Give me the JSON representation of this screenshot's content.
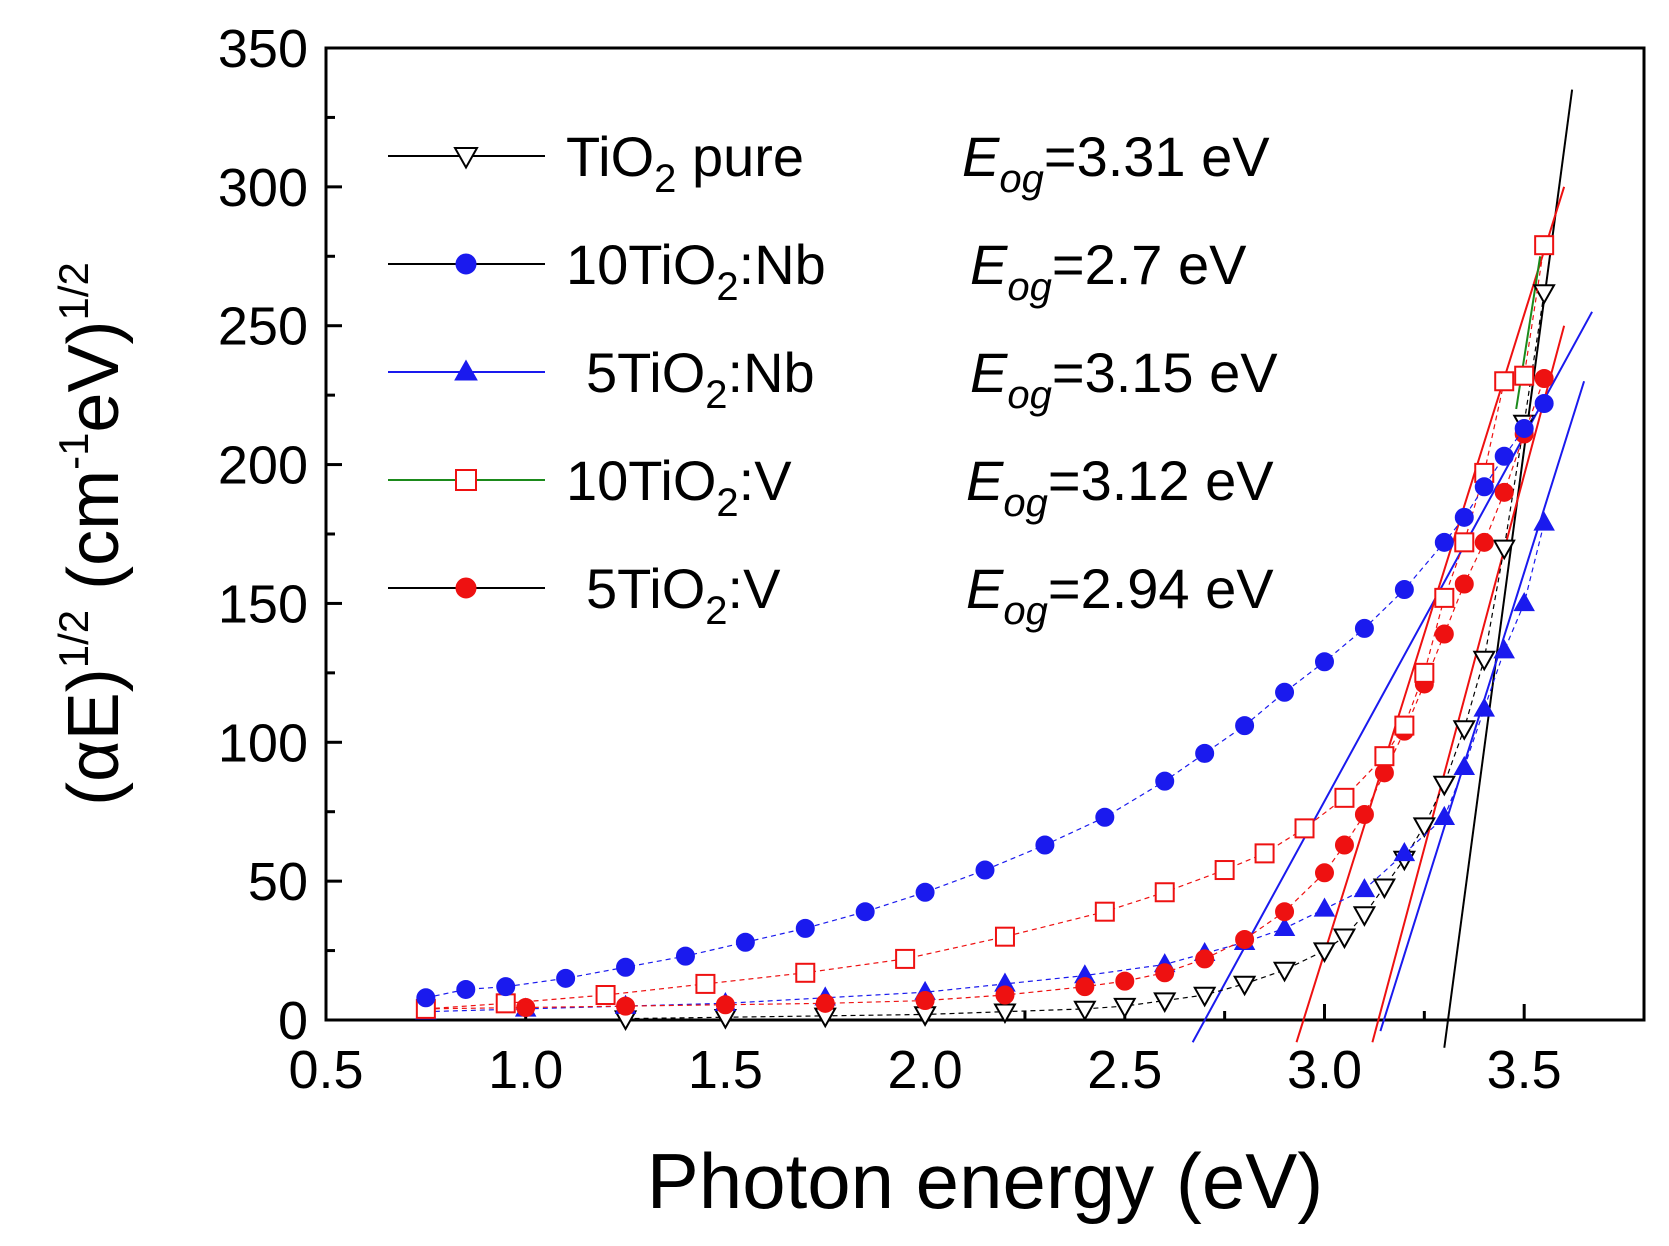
{
  "chart_data": {
    "type": "scatter",
    "xlabel": "Photon energy (eV)",
    "ylabel": {
      "prefix": "(αE)",
      "prefix_sup": "1/2",
      "unit_open": "(cm",
      "unit_sup": "-1",
      "unit_close": "eV)",
      "unit_close_sup": "1/2"
    },
    "xlim": [
      0.5,
      3.8
    ],
    "ylim": [
      0,
      350
    ],
    "xticks": [
      0.5,
      1.0,
      1.5,
      2.0,
      2.5,
      3.0,
      3.5
    ],
    "xtick_labels": [
      "0.5",
      "1.0",
      "1.5",
      "2.0",
      "2.5",
      "3.0",
      "3.5"
    ],
    "yticks": [
      0,
      50,
      100,
      150,
      200,
      250,
      300,
      350
    ],
    "ytick_labels": [
      "0",
      "50",
      "100",
      "150",
      "200",
      "250",
      "300",
      "350"
    ],
    "series": [
      {
        "name": "TiO2 pure",
        "label_main": "TiO",
        "label_sub": "2",
        "label_tail": " pure",
        "eog_value": "=3.31 eV",
        "marker": "triangle-down-open",
        "color": "#000000",
        "x": [
          1.25,
          1.5,
          1.75,
          2.0,
          2.2,
          2.4,
          2.5,
          2.6,
          2.7,
          2.8,
          2.9,
          3.0,
          3.05,
          3.1,
          3.15,
          3.2,
          3.25,
          3.3,
          3.35,
          3.4,
          3.45,
          3.5,
          3.55
        ],
        "y": [
          0.5,
          1,
          1.5,
          2,
          3,
          4,
          5,
          7,
          9,
          13,
          18,
          25,
          30,
          38,
          48,
          58,
          70,
          85,
          105,
          130,
          170,
          215,
          262
        ]
      },
      {
        "name": "10TiO2:Nb",
        "label_main": "10TiO",
        "label_sub": "2",
        "label_tail": ":Nb",
        "eog_value": "=2.7 eV",
        "marker": "circle-filled",
        "color": "#1a1aee",
        "x": [
          0.75,
          0.85,
          0.95,
          1.1,
          1.25,
          1.4,
          1.55,
          1.7,
          1.85,
          2.0,
          2.15,
          2.3,
          2.45,
          2.6,
          2.7,
          2.8,
          2.9,
          3.0,
          3.1,
          3.2,
          3.3,
          3.35,
          3.4,
          3.45,
          3.5,
          3.55
        ],
        "y": [
          8,
          11,
          12,
          15,
          19,
          23,
          28,
          33,
          39,
          46,
          54,
          63,
          73,
          86,
          96,
          106,
          118,
          129,
          141,
          155,
          172,
          181,
          192,
          203,
          213,
          222
        ]
      },
      {
        "name": "5TiO2:Nb",
        "label_main": "5TiO",
        "label_sub": "2",
        "label_tail": ":Nb",
        "eog_value": "=3.15 eV",
        "marker": "triangle-up-filled",
        "color": "#1a1aee",
        "x": [
          0.75,
          1.0,
          1.25,
          1.5,
          1.75,
          2.0,
          2.2,
          2.4,
          2.6,
          2.7,
          2.8,
          2.9,
          3.0,
          3.1,
          3.2,
          3.3,
          3.35,
          3.4,
          3.45,
          3.5,
          3.55
        ],
        "y": [
          3,
          4,
          5,
          6,
          8,
          10,
          13,
          16,
          20,
          24,
          28,
          33,
          40,
          47,
          60,
          73,
          91,
          112,
          133,
          150,
          179
        ]
      },
      {
        "name": "10TiO2:V",
        "label_main": "10TiO",
        "label_sub": "2",
        "label_tail": ":V",
        "eog_value": "=3.12 eV",
        "marker": "square-open",
        "color": "#ee1111",
        "x": [
          0.75,
          0.95,
          1.2,
          1.45,
          1.7,
          1.95,
          2.2,
          2.45,
          2.6,
          2.75,
          2.85,
          2.95,
          3.05,
          3.15,
          3.2,
          3.25,
          3.3,
          3.35,
          3.4,
          3.45,
          3.5,
          3.55
        ],
        "y": [
          4,
          6,
          9,
          13,
          17,
          22,
          30,
          39,
          46,
          54,
          60,
          69,
          80,
          95,
          106,
          125,
          152,
          172,
          197,
          230,
          232,
          279
        ]
      },
      {
        "name": "5TiO2:V",
        "label_main": "5TiO",
        "label_sub": "2",
        "label_tail": ":V",
        "eog_value": "=2.94 eV",
        "marker": "circle-filled",
        "color": "#ee1111",
        "x": [
          0.75,
          1.0,
          1.25,
          1.5,
          1.75,
          2.0,
          2.2,
          2.4,
          2.5,
          2.6,
          2.7,
          2.8,
          2.9,
          3.0,
          3.05,
          3.1,
          3.15,
          3.2,
          3.25,
          3.3,
          3.35,
          3.4,
          3.45,
          3.5,
          3.55
        ],
        "y": [
          4,
          4.5,
          5,
          5.5,
          6,
          7,
          9,
          12,
          14,
          17,
          22,
          29,
          39,
          53,
          63,
          74,
          89,
          104,
          121,
          139,
          157,
          172,
          190,
          211,
          231
        ]
      }
    ],
    "fit_lines": [
      {
        "color": "#000000",
        "x": [
          3.3,
          3.62
        ],
        "y": [
          -10,
          335
        ]
      },
      {
        "color": "#1a1aee",
        "x": [
          2.67,
          3.67
        ],
        "y": [
          -8,
          255
        ]
      },
      {
        "color": "#1a1aee",
        "x": [
          3.14,
          3.65
        ],
        "y": [
          -4,
          230
        ]
      },
      {
        "color": "#ee1111",
        "x": [
          2.93,
          3.6
        ],
        "y": [
          -8,
          300
        ]
      },
      {
        "color": "#ee1111",
        "x": [
          3.12,
          3.6
        ],
        "y": [
          -8,
          250
        ]
      },
      {
        "color": "#1b8a1b",
        "x": [
          3.48,
          3.54
        ],
        "y": [
          220,
          275
        ]
      }
    ],
    "legend": {
      "position": "top-left",
      "eog_symbol": "E",
      "eog_sub": "og"
    }
  }
}
